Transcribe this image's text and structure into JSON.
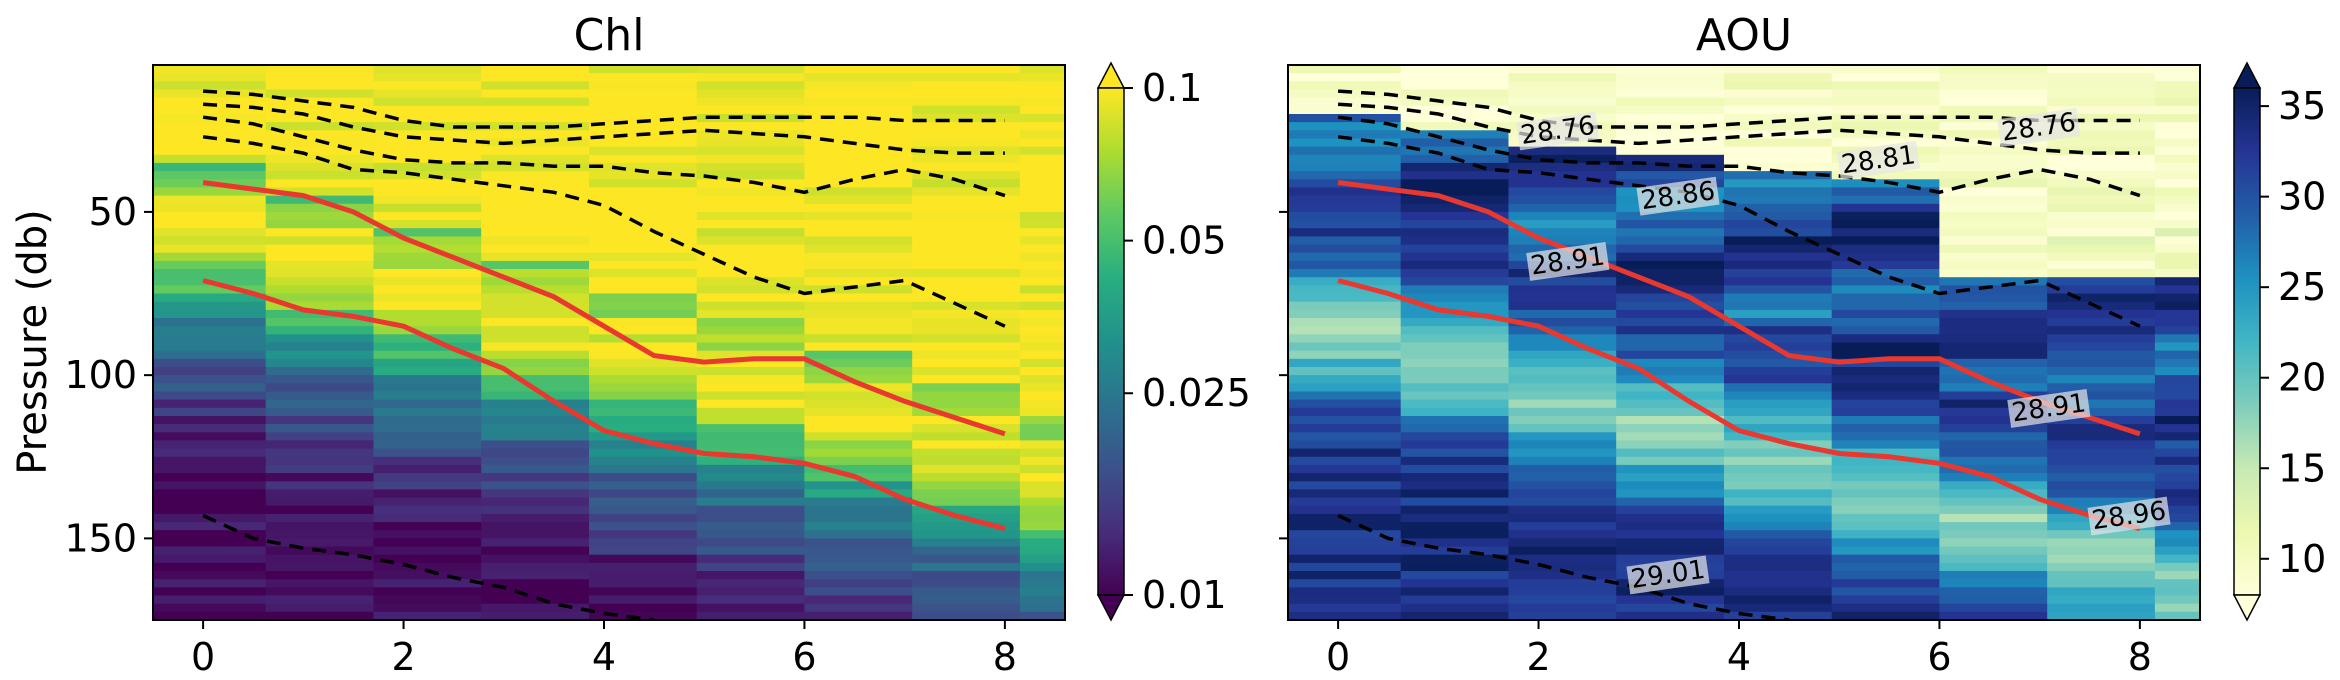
{
  "chart_data": [
    {
      "type": "heatmap",
      "title": "Chl",
      "xlabel": "",
      "ylabel": "Pressure (db)",
      "xlim": [
        -0.5,
        8.6
      ],
      "ylim": [
        175,
        5
      ],
      "x_ticks": [
        0,
        2,
        4,
        6,
        8
      ],
      "y_ticks": [
        50,
        100,
        150
      ],
      "colormap": "viridis",
      "colorbar": {
        "scale": "log",
        "ticks": [
          "0.1",
          "0.05",
          "0.025",
          "0.01"
        ],
        "extend": "both"
      },
      "red_lines": [
        [
          [
            0,
            41
          ],
          [
            0.5,
            43
          ],
          [
            1,
            45
          ],
          [
            1.5,
            50
          ],
          [
            2,
            58
          ],
          [
            2.5,
            64
          ],
          [
            3,
            70
          ],
          [
            3.5,
            76
          ],
          [
            4,
            85
          ],
          [
            4.5,
            94
          ],
          [
            5,
            96
          ],
          [
            5.5,
            95
          ],
          [
            6,
            95
          ],
          [
            6.5,
            102
          ],
          [
            7,
            108
          ],
          [
            7.5,
            113
          ],
          [
            8,
            118
          ]
        ],
        [
          [
            0,
            71
          ],
          [
            0.5,
            75
          ],
          [
            1,
            80
          ],
          [
            1.5,
            82
          ],
          [
            2,
            85
          ],
          [
            2.5,
            92
          ],
          [
            3,
            98
          ],
          [
            3.5,
            108
          ],
          [
            4,
            117
          ],
          [
            4.5,
            121
          ],
          [
            5,
            124
          ],
          [
            5.5,
            125
          ],
          [
            6,
            127
          ],
          [
            6.5,
            131
          ],
          [
            7,
            138
          ],
          [
            7.5,
            143
          ],
          [
            8,
            147
          ]
        ]
      ],
      "dashed_lines": [
        [
          [
            0,
            13
          ],
          [
            0.5,
            14
          ],
          [
            1,
            16
          ],
          [
            1.5,
            18
          ],
          [
            2,
            22
          ],
          [
            2.5,
            24
          ],
          [
            3,
            24
          ],
          [
            3.5,
            24
          ],
          [
            4,
            23
          ],
          [
            4.5,
            22
          ],
          [
            5,
            21
          ],
          [
            5.5,
            21
          ],
          [
            6,
            21
          ],
          [
            6.5,
            21
          ],
          [
            7,
            22
          ],
          [
            7.5,
            22
          ],
          [
            8,
            22
          ]
        ],
        [
          [
            0,
            17
          ],
          [
            0.5,
            18
          ],
          [
            1,
            20
          ],
          [
            1.5,
            24
          ],
          [
            2,
            27
          ],
          [
            2.5,
            28
          ],
          [
            3,
            29
          ],
          [
            3.5,
            28
          ],
          [
            4,
            27
          ],
          [
            4.5,
            26
          ],
          [
            5,
            25
          ],
          [
            5.5,
            26
          ],
          [
            6,
            27
          ],
          [
            6.5,
            29
          ],
          [
            7,
            31
          ],
          [
            7.5,
            32
          ],
          [
            8,
            32
          ]
        ],
        [
          [
            0,
            21
          ],
          [
            0.5,
            23
          ],
          [
            1,
            27
          ],
          [
            1.5,
            31
          ],
          [
            2,
            34
          ],
          [
            2.5,
            35
          ],
          [
            3,
            35
          ],
          [
            3.5,
            36
          ],
          [
            4,
            36
          ],
          [
            4.5,
            38
          ],
          [
            5,
            39
          ],
          [
            5.5,
            41
          ],
          [
            6,
            44
          ],
          [
            6.5,
            40
          ],
          [
            7,
            37
          ],
          [
            7.5,
            40
          ],
          [
            8,
            45
          ]
        ],
        [
          [
            0,
            27
          ],
          [
            0.5,
            29
          ],
          [
            1,
            32
          ],
          [
            1.5,
            37
          ],
          [
            2,
            38
          ],
          [
            2.5,
            40
          ],
          [
            3,
            42
          ],
          [
            3.5,
            44
          ],
          [
            4,
            48
          ],
          [
            4.5,
            56
          ],
          [
            5,
            63
          ],
          [
            5.5,
            70
          ],
          [
            6,
            75
          ],
          [
            6.5,
            73
          ],
          [
            7,
            71
          ],
          [
            7.5,
            78
          ],
          [
            8,
            85
          ]
        ],
        [
          [
            0,
            143
          ],
          [
            0.5,
            150
          ],
          [
            1,
            153
          ],
          [
            1.5,
            155
          ],
          [
            2,
            158
          ],
          [
            2.5,
            162
          ],
          [
            3,
            165
          ],
          [
            3.5,
            170
          ],
          [
            4,
            173
          ],
          [
            4.5,
            175
          ]
        ]
      ],
      "contour_labels": []
    },
    {
      "type": "heatmap",
      "title": "AOU",
      "xlabel": "",
      "ylabel": "",
      "xlim": [
        -0.5,
        8.6
      ],
      "ylim": [
        175,
        5
      ],
      "x_ticks": [
        0,
        2,
        4,
        6,
        8
      ],
      "y_ticks": [
        50,
        100,
        150
      ],
      "colormap": "YlGnBu",
      "colorbar": {
        "scale": "linear",
        "ticks": [
          "35",
          "30",
          "25",
          "20",
          "15",
          "10"
        ],
        "extend": "both"
      },
      "red_lines": [
        [
          [
            0,
            41
          ],
          [
            0.5,
            43
          ],
          [
            1,
            45
          ],
          [
            1.5,
            50
          ],
          [
            2,
            58
          ],
          [
            2.5,
            64
          ],
          [
            3,
            70
          ],
          [
            3.5,
            76
          ],
          [
            4,
            85
          ],
          [
            4.5,
            94
          ],
          [
            5,
            96
          ],
          [
            5.5,
            95
          ],
          [
            6,
            95
          ],
          [
            6.5,
            102
          ],
          [
            7,
            108
          ],
          [
            7.5,
            113
          ],
          [
            8,
            118
          ]
        ],
        [
          [
            0,
            71
          ],
          [
            0.5,
            75
          ],
          [
            1,
            80
          ],
          [
            1.5,
            82
          ],
          [
            2,
            85
          ],
          [
            2.5,
            92
          ],
          [
            3,
            98
          ],
          [
            3.5,
            108
          ],
          [
            4,
            117
          ],
          [
            4.5,
            121
          ],
          [
            5,
            124
          ],
          [
            5.5,
            125
          ],
          [
            6,
            127
          ],
          [
            6.5,
            131
          ],
          [
            7,
            138
          ],
          [
            7.5,
            143
          ],
          [
            8,
            147
          ]
        ]
      ],
      "dashed_lines": [
        [
          [
            0,
            13
          ],
          [
            0.5,
            14
          ],
          [
            1,
            16
          ],
          [
            1.5,
            18
          ],
          [
            2,
            22
          ],
          [
            2.5,
            24
          ],
          [
            3,
            24
          ],
          [
            3.5,
            24
          ],
          [
            4,
            23
          ],
          [
            4.5,
            22
          ],
          [
            5,
            21
          ],
          [
            5.5,
            21
          ],
          [
            6,
            21
          ],
          [
            6.5,
            21
          ],
          [
            7,
            22
          ],
          [
            7.5,
            22
          ],
          [
            8,
            22
          ]
        ],
        [
          [
            0,
            17
          ],
          [
            0.5,
            18
          ],
          [
            1,
            20
          ],
          [
            1.5,
            24
          ],
          [
            2,
            27
          ],
          [
            2.5,
            28
          ],
          [
            3,
            29
          ],
          [
            3.5,
            28
          ],
          [
            4,
            27
          ],
          [
            4.5,
            26
          ],
          [
            5,
            25
          ],
          [
            5.5,
            26
          ],
          [
            6,
            27
          ],
          [
            6.5,
            29
          ],
          [
            7,
            31
          ],
          [
            7.5,
            32
          ],
          [
            8,
            32
          ]
        ],
        [
          [
            0,
            21
          ],
          [
            0.5,
            23
          ],
          [
            1,
            27
          ],
          [
            1.5,
            31
          ],
          [
            2,
            34
          ],
          [
            2.5,
            35
          ],
          [
            3,
            35
          ],
          [
            3.5,
            36
          ],
          [
            4,
            36
          ],
          [
            4.5,
            38
          ],
          [
            5,
            39
          ],
          [
            5.5,
            41
          ],
          [
            6,
            44
          ],
          [
            6.5,
            40
          ],
          [
            7,
            37
          ],
          [
            7.5,
            40
          ],
          [
            8,
            45
          ]
        ],
        [
          [
            0,
            27
          ],
          [
            0.5,
            29
          ],
          [
            1,
            32
          ],
          [
            1.5,
            37
          ],
          [
            2,
            38
          ],
          [
            2.5,
            40
          ],
          [
            3,
            42
          ],
          [
            3.5,
            44
          ],
          [
            4,
            48
          ],
          [
            4.5,
            56
          ],
          [
            5,
            63
          ],
          [
            5.5,
            70
          ],
          [
            6,
            75
          ],
          [
            6.5,
            73
          ],
          [
            7,
            71
          ],
          [
            7.5,
            78
          ],
          [
            8,
            85
          ]
        ],
        [
          [
            0,
            143
          ],
          [
            0.5,
            150
          ],
          [
            1,
            153
          ],
          [
            1.5,
            155
          ],
          [
            2,
            158
          ],
          [
            2.5,
            162
          ],
          [
            3,
            165
          ],
          [
            3.5,
            170
          ],
          [
            4,
            173
          ],
          [
            4.5,
            175
          ]
        ]
      ],
      "contour_labels": [
        {
          "text": "28.76",
          "x": 2.2,
          "y": 27
        },
        {
          "text": "28.76",
          "x": 7.0,
          "y": 26
        },
        {
          "text": "28.81",
          "x": 5.4,
          "y": 36
        },
        {
          "text": "28.86",
          "x": 3.4,
          "y": 47
        },
        {
          "text": "28.91",
          "x": 2.3,
          "y": 67
        },
        {
          "text": "28.91",
          "x": 7.1,
          "y": 112
        },
        {
          "text": "28.96",
          "x": 7.9,
          "y": 145
        },
        {
          "text": "29.01",
          "x": 3.3,
          "y": 163
        }
      ]
    }
  ]
}
